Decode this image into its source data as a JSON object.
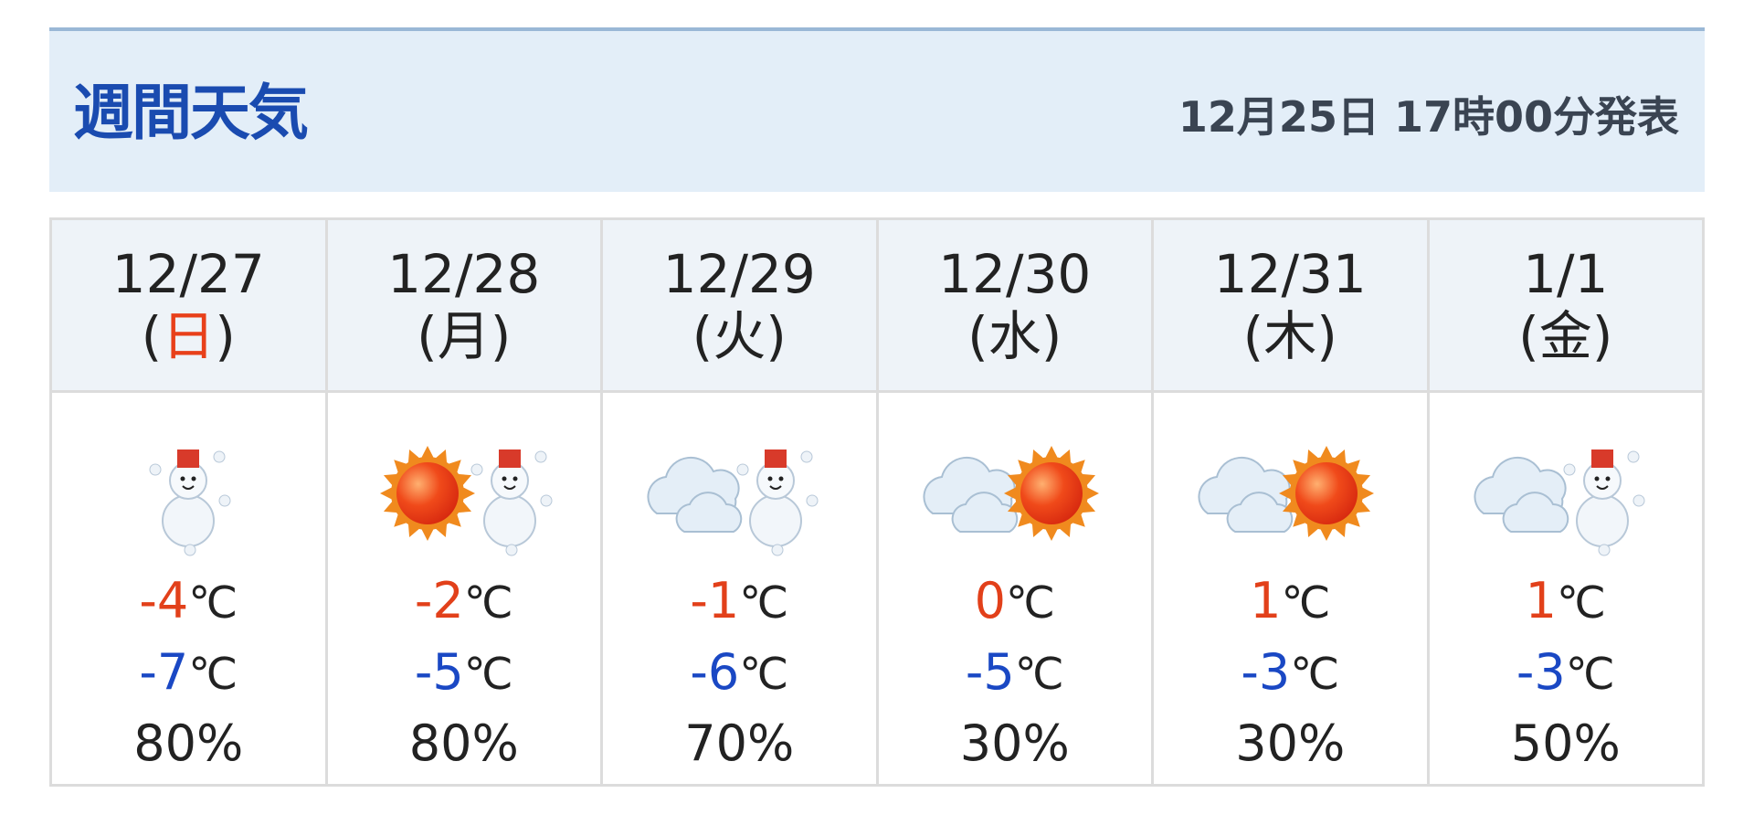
{
  "header": {
    "title": "週間天気",
    "issued": "12月25日 17時00分発表"
  },
  "colors": {
    "title": "#1a4bb0",
    "high": "#e2401a",
    "low": "#1a48c4",
    "sunday": "#e8401a"
  },
  "days": [
    {
      "date": "12/27",
      "weekday": "日",
      "icon": "snow",
      "high": "-4",
      "low": "-7",
      "pop": "80%"
    },
    {
      "date": "12/28",
      "weekday": "月",
      "icon": "sun-snow",
      "high": "-2",
      "low": "-5",
      "pop": "80%"
    },
    {
      "date": "12/29",
      "weekday": "火",
      "icon": "cloud-snow",
      "high": "-1",
      "low": "-6",
      "pop": "70%"
    },
    {
      "date": "12/30",
      "weekday": "水",
      "icon": "cloud-sun",
      "high": "0",
      "low": "-5",
      "pop": "30%"
    },
    {
      "date": "12/31",
      "weekday": "木",
      "icon": "cloud-sun",
      "high": "1",
      "low": "-3",
      "pop": "30%"
    },
    {
      "date": "1/1",
      "weekday": "金",
      "icon": "cloud-snow",
      "high": "1",
      "low": "-3",
      "pop": "50%"
    }
  ],
  "unit": "℃"
}
